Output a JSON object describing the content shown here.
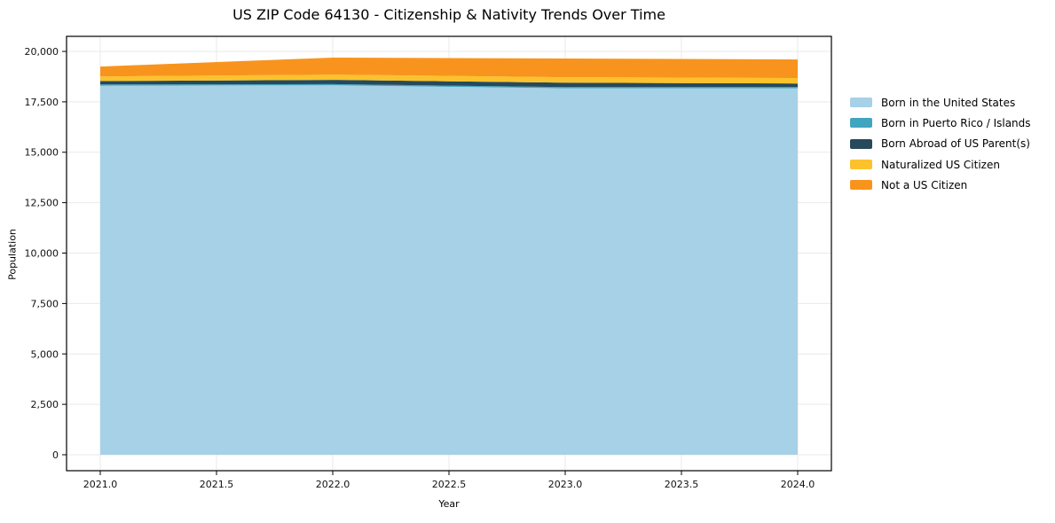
{
  "figure": {
    "title": "US ZIP Code 64130 - Citizenship & Nativity Trends Over Time",
    "background_color": "#ffffff",
    "spine_color": "#000000",
    "grid_color": "#e9e9e9",
    "tick_label_color": "#111111"
  },
  "chart_data": {
    "type": "area",
    "stacked": true,
    "title": "US ZIP Code 64130 - Citizenship & Nativity Trends Over Time",
    "xlabel": "Year",
    "ylabel": "Population",
    "x": [
      2021,
      2022,
      2023,
      2024
    ],
    "series": [
      {
        "name": "Born in the United States",
        "color": "#a6d1e6",
        "values": [
          18300,
          18320,
          18170,
          18170
        ]
      },
      {
        "name": "Born in Puerto Rico / Islands",
        "color": "#41a5bf",
        "values": [
          60,
          60,
          60,
          60
        ]
      },
      {
        "name": "Born Abroad of US Parent(s)",
        "color": "#27495c",
        "values": [
          170,
          210,
          220,
          180
        ]
      },
      {
        "name": "Naturalized US Citizen",
        "color": "#fcc22d",
        "values": [
          230,
          260,
          270,
          270
        ]
      },
      {
        "name": "Not a US Citizen",
        "color": "#f8941d",
        "values": [
          490,
          840,
          930,
          920
        ]
      }
    ],
    "stack_totals": [
      19250,
      19690,
      19650,
      19600
    ],
    "xticks": [
      2021.0,
      2021.5,
      2022.0,
      2022.5,
      2023.0,
      2023.5,
      2024.0
    ],
    "xtick_labels": [
      "2021.0",
      "2021.5",
      "2022.0",
      "2022.5",
      "2023.0",
      "2023.5",
      "2024.0"
    ],
    "yticks": [
      0,
      2500,
      5000,
      7500,
      10000,
      12500,
      15000,
      17500,
      20000
    ],
    "ytick_labels": [
      "0",
      "2,500",
      "5,000",
      "7,500",
      "10,000",
      "12,500",
      "15,000",
      "17,500",
      "20,000"
    ],
    "xlim": [
      2020.855,
      2024.145
    ],
    "ylim": [
      -791,
      20747
    ],
    "grid": true,
    "legend_position": "right"
  }
}
